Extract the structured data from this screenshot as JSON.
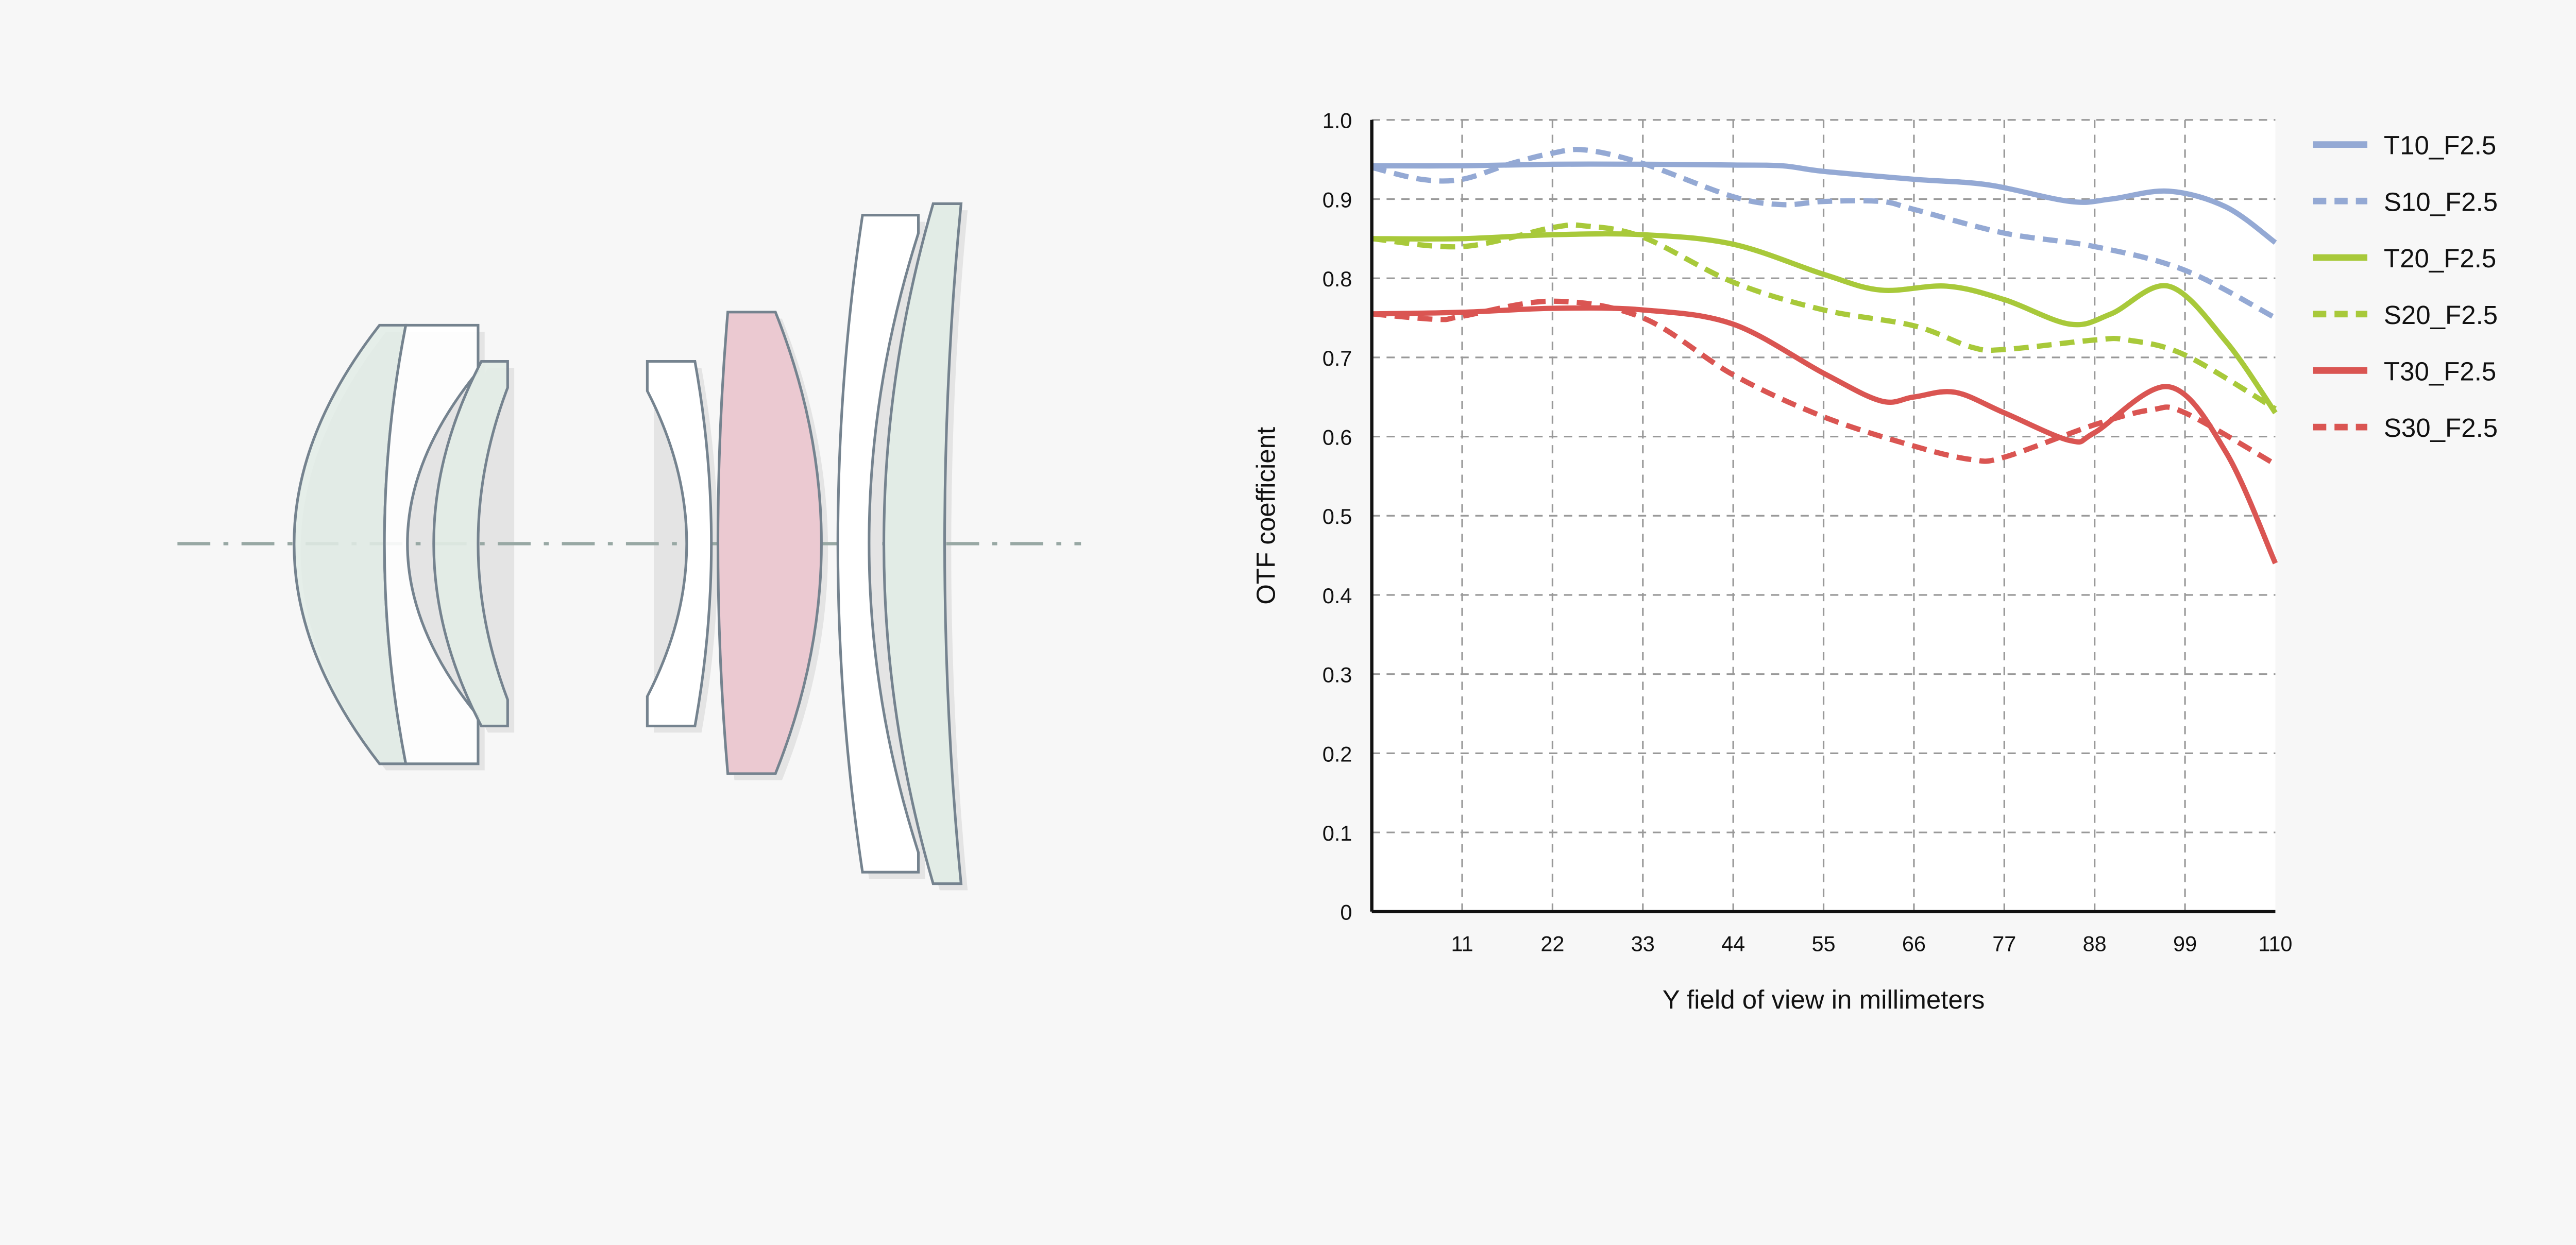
{
  "chart_data": {
    "type": "line",
    "title": "",
    "xlabel": "Y field of view in millimeters",
    "ylabel": "OTF coefficient",
    "xlim": [
      0,
      110
    ],
    "ylim": [
      0,
      1.0
    ],
    "x_ticks": [
      "11",
      "22",
      "33",
      "44",
      "55",
      "66",
      "77",
      "88",
      "99",
      "110"
    ],
    "y_ticks": [
      "0",
      "0.1",
      "0.2",
      "0.3",
      "0.4",
      "0.5",
      "0.6",
      "0.7",
      "0.8",
      "0.9",
      "1.0"
    ],
    "grid": true,
    "legend_position": "right",
    "series": [
      {
        "name": "T10_F2.5",
        "color": "#94a9d4",
        "dashed": false,
        "x": [
          0,
          11,
          22,
          33,
          44,
          50,
          55,
          66,
          75,
          85,
          90,
          97,
          104,
          110
        ],
        "y": [
          0.942,
          0.942,
          0.944,
          0.944,
          0.943,
          0.942,
          0.935,
          0.925,
          0.918,
          0.897,
          0.9,
          0.91,
          0.89,
          0.845
        ]
      },
      {
        "name": "S10_F2.5",
        "color": "#94a9d4",
        "dashed": true,
        "x": [
          0,
          6,
          11,
          17,
          22,
          26,
          33,
          44,
          50,
          55,
          62,
          66,
          77,
          88,
          99,
          110
        ],
        "y": [
          0.94,
          0.925,
          0.925,
          0.945,
          0.958,
          0.962,
          0.945,
          0.903,
          0.893,
          0.897,
          0.897,
          0.887,
          0.857,
          0.84,
          0.81,
          0.75
        ]
      },
      {
        "name": "T20_F2.5",
        "color": "#a8c93a",
        "dashed": false,
        "x": [
          0,
          11,
          22,
          33,
          44,
          55,
          62,
          70,
          77,
          85,
          90,
          97,
          104,
          110
        ],
        "y": [
          0.85,
          0.85,
          0.855,
          0.855,
          0.843,
          0.805,
          0.785,
          0.79,
          0.773,
          0.742,
          0.755,
          0.79,
          0.72,
          0.63
        ]
      },
      {
        "name": "S20_F2.5",
        "color": "#a8c93a",
        "dashed": true,
        "x": [
          0,
          11,
          22,
          26,
          33,
          44,
          55,
          66,
          73,
          77,
          88,
          92,
          99,
          110
        ],
        "y": [
          0.85,
          0.84,
          0.864,
          0.866,
          0.852,
          0.795,
          0.76,
          0.74,
          0.713,
          0.71,
          0.722,
          0.722,
          0.703,
          0.635
        ]
      },
      {
        "name": "T30_F2.5",
        "color": "#da5552",
        "dashed": false,
        "x": [
          0,
          11,
          22,
          33,
          44,
          55,
          62,
          66,
          71,
          77,
          85,
          88,
          97,
          104,
          110
        ],
        "y": [
          0.755,
          0.757,
          0.762,
          0.76,
          0.742,
          0.68,
          0.645,
          0.65,
          0.656,
          0.63,
          0.595,
          0.605,
          0.663,
          0.58,
          0.44
        ]
      },
      {
        "name": "S30_F2.5",
        "color": "#da5552",
        "dashed": true,
        "x": [
          0,
          8,
          11,
          22,
          33,
          44,
          55,
          66,
          73,
          77,
          88,
          95,
          99,
          110
        ],
        "y": [
          0.755,
          0.748,
          0.752,
          0.771,
          0.75,
          0.678,
          0.625,
          0.588,
          0.571,
          0.574,
          0.615,
          0.634,
          0.63,
          0.565
        ]
      }
    ]
  },
  "diagram": {
    "lens_colors": {
      "green": "#e2ece6",
      "white": "#ffffff",
      "pink": "#ebc9d1",
      "outline": "#75838f",
      "axis": "#98a8a4"
    }
  }
}
